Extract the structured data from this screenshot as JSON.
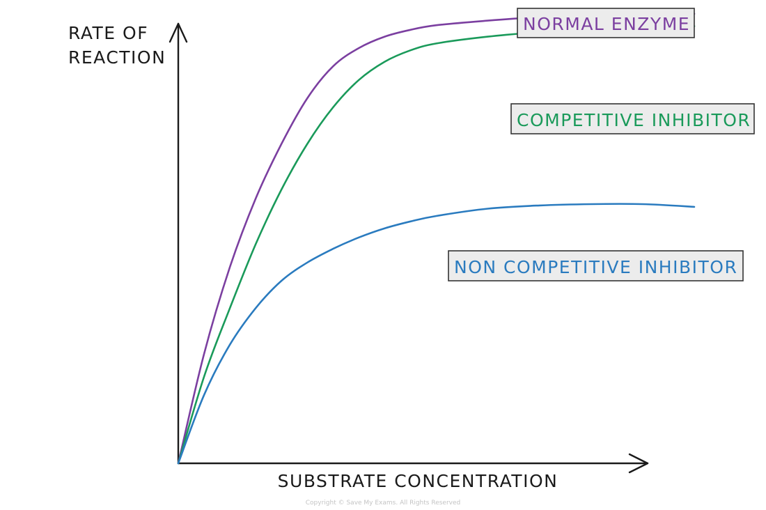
{
  "chart_data": {
    "type": "line",
    "ylabel_lines": [
      "RATE OF",
      "REACTION"
    ],
    "xlabel": "SUBSTRATE CONCENTRATION",
    "grid": false,
    "xlim": [
      0,
      10
    ],
    "ylim": [
      0,
      10
    ],
    "series": [
      {
        "name": "NORMAL ENZYME",
        "color": "#7b3fa0",
        "x": [
          0,
          0.5,
          1,
          1.5,
          2,
          2.5,
          3,
          3.5,
          4,
          4.5,
          5,
          6,
          7,
          8,
          9,
          10
        ],
        "y": [
          0,
          2.4,
          4.3,
          5.8,
          7.0,
          8.0,
          8.7,
          9.1,
          9.35,
          9.5,
          9.6,
          9.7,
          9.78,
          9.83,
          9.85,
          9.85
        ]
      },
      {
        "name": "COMPETITIVE INHIBITOR",
        "color": "#1a9a5a",
        "x": [
          0,
          0.5,
          1,
          1.5,
          2,
          2.5,
          3,
          3.5,
          4,
          4.5,
          5,
          6,
          7,
          8,
          9,
          10
        ],
        "y": [
          0,
          1.9,
          3.4,
          4.8,
          6.0,
          7.0,
          7.8,
          8.4,
          8.8,
          9.05,
          9.2,
          9.35,
          9.45,
          9.52,
          9.56,
          9.58
        ]
      },
      {
        "name": "NON COMPETITIVE INHIBITOR",
        "color": "#2a7bbf",
        "x": [
          0,
          0.5,
          1,
          1.5,
          2,
          2.5,
          3,
          3.5,
          4,
          4.5,
          5,
          6,
          7,
          8,
          9,
          10
        ],
        "y": [
          0,
          1.5,
          2.6,
          3.4,
          4.0,
          4.4,
          4.7,
          4.95,
          5.15,
          5.3,
          5.42,
          5.58,
          5.65,
          5.68,
          5.68,
          5.62
        ]
      }
    ],
    "legend": [
      {
        "label": "NORMAL ENZYME",
        "color": "#7b3fa0"
      },
      {
        "label": "COMPETITIVE INHIBITOR",
        "color": "#1a9a5a"
      },
      {
        "label": "NON COMPETITIVE INHIBITOR",
        "color": "#2a7bbf"
      }
    ]
  },
  "footer": {
    "copyright": "Copyright © Save My Exams. All Rights Reserved"
  }
}
